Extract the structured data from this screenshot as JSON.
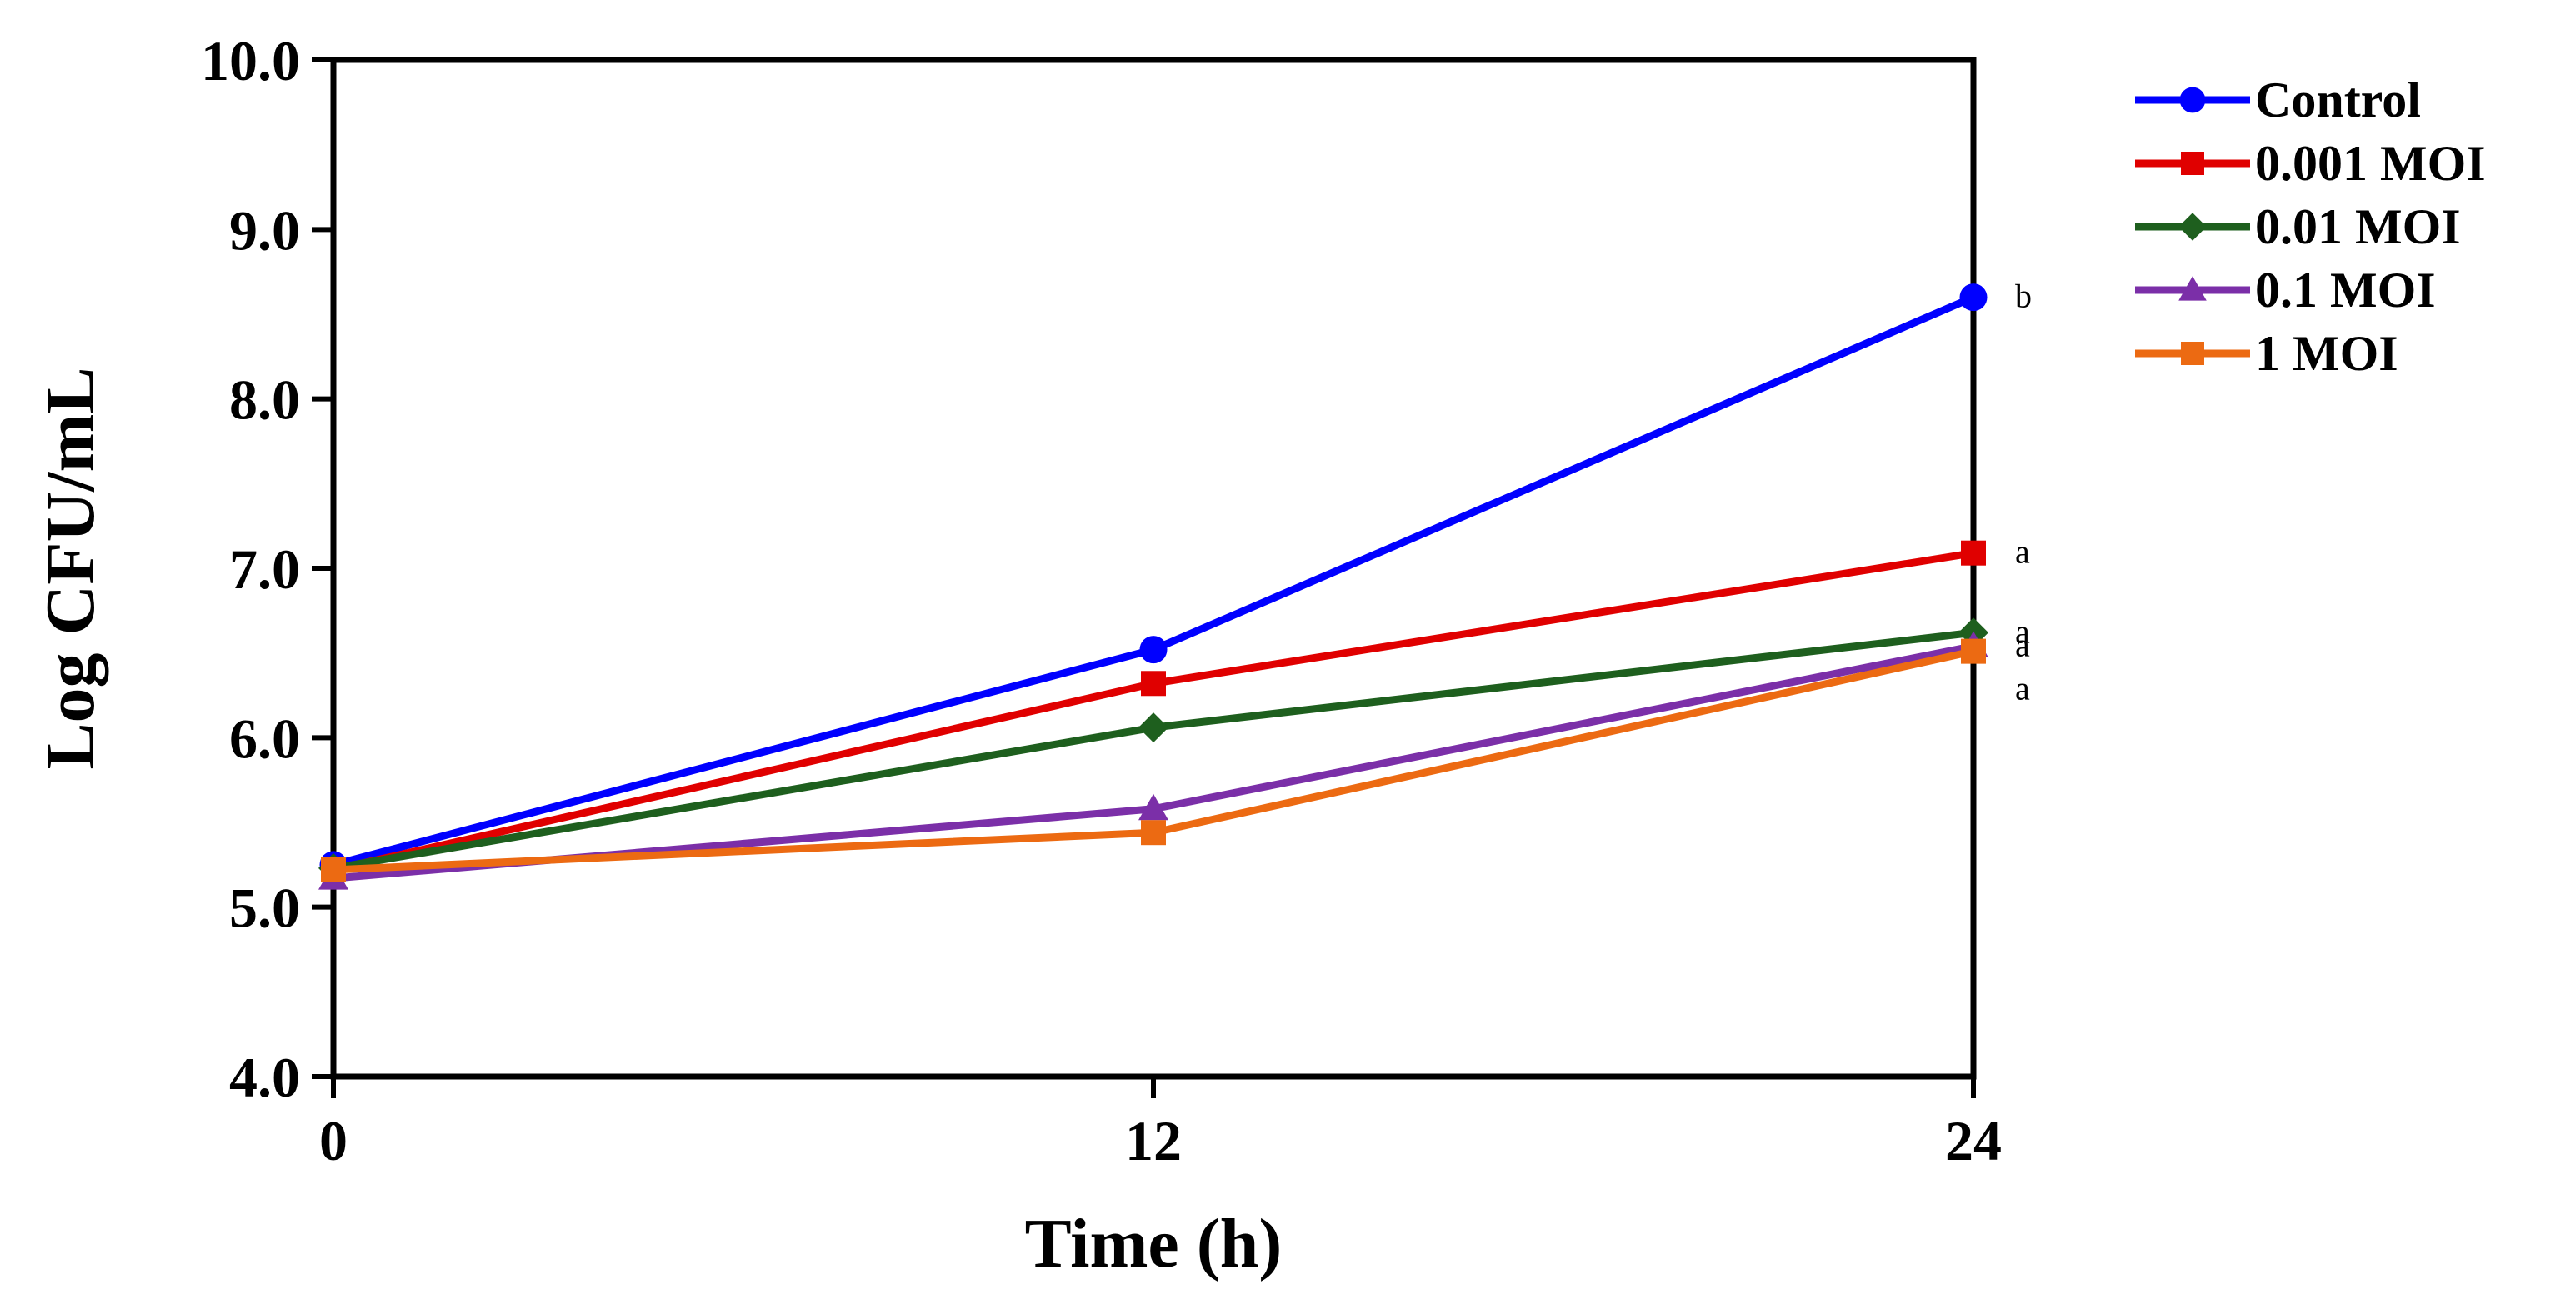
{
  "chart_data": {
    "type": "line",
    "title": "",
    "xlabel": "Time (h)",
    "ylabel": "Log CFU/mL",
    "x": [
      0,
      12,
      24
    ],
    "x_tick_labels": [
      "0",
      "12",
      "24"
    ],
    "xlim": [
      0,
      24
    ],
    "ylim": [
      4.0,
      10.0
    ],
    "y_ticks": [
      4.0,
      5.0,
      6.0,
      7.0,
      8.0,
      9.0,
      10.0
    ],
    "y_tick_labels": [
      "4.0",
      "5.0",
      "6.0",
      "7.0",
      "8.0",
      "9.0",
      "10.0"
    ],
    "grid": false,
    "legend_position": "right",
    "series": [
      {
        "name": "Control",
        "values": [
          5.25,
          6.52,
          8.6
        ],
        "color": "#0000ff",
        "marker": "circle",
        "annotation": "b"
      },
      {
        "name": "0.001 MOI",
        "values": [
          5.22,
          6.32,
          7.09
        ],
        "color": "#e00000",
        "marker": "square",
        "annotation": "a"
      },
      {
        "name": "0.01 MOI",
        "values": [
          5.23,
          6.06,
          6.62
        ],
        "color": "#1e5f1e",
        "marker": "diamond",
        "annotation": "a"
      },
      {
        "name": "0.1 MOI",
        "values": [
          5.17,
          5.58,
          6.54
        ],
        "color": "#7b2fa8",
        "marker": "triangle",
        "annotation": "a"
      },
      {
        "name": "1 MOI",
        "values": [
          5.22,
          5.44,
          6.51
        ],
        "color": "#ec6a12",
        "marker": "square",
        "annotation": "a"
      }
    ]
  }
}
